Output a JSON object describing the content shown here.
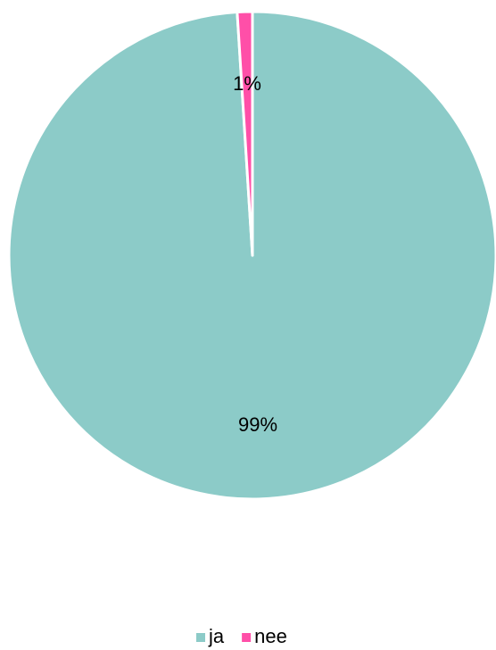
{
  "chart_data": {
    "type": "pie",
    "categories": [
      "ja",
      "nee"
    ],
    "values": [
      99,
      1
    ],
    "value_labels": [
      "99%",
      "1%"
    ],
    "colors": [
      "#8ccbc8",
      "#ff4fa8"
    ],
    "legend": "bottom"
  }
}
